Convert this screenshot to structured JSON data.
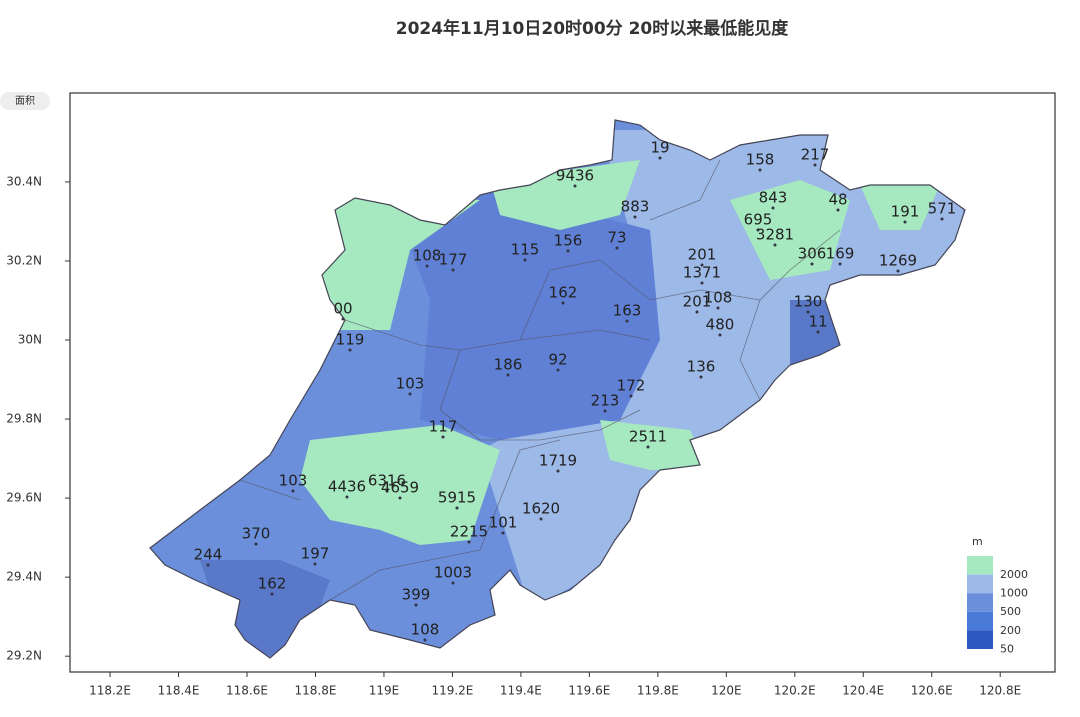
{
  "title": "2024年11月10日20时00分 20时以来最低能见度",
  "button": "面积",
  "map": {
    "xlim": [
      118.083,
      120.96
    ],
    "ylim": [
      29.16,
      30.625
    ],
    "xticks": [
      {
        "value": 118.2,
        "label": "118.2E"
      },
      {
        "value": 118.4,
        "label": "118.4E"
      },
      {
        "value": 118.6,
        "label": "118.6E"
      },
      {
        "value": 118.8,
        "label": "118.8E"
      },
      {
        "value": 119,
        "label": "119E"
      },
      {
        "value": 119.2,
        "label": "119.2E"
      },
      {
        "value": 119.4,
        "label": "119.4E"
      },
      {
        "value": 119.6,
        "label": "119.6E"
      },
      {
        "value": 119.8,
        "label": "119.8E"
      },
      {
        "value": 120,
        "label": "120E"
      },
      {
        "value": 120.2,
        "label": "120.2E"
      },
      {
        "value": 120.4,
        "label": "120.4E"
      },
      {
        "value": 120.6,
        "label": "120.6E"
      },
      {
        "value": 120.8,
        "label": "120.8E"
      }
    ],
    "yticks": [
      {
        "value": 29.2,
        "label": "29.2N"
      },
      {
        "value": 29.4,
        "label": "29.4N"
      },
      {
        "value": 29.6,
        "label": "29.6N"
      },
      {
        "value": 29.8,
        "label": "29.8N"
      },
      {
        "value": 30,
        "label": "30N"
      },
      {
        "value": 30.2,
        "label": "30.2N"
      },
      {
        "value": 30.4,
        "label": "30.4N"
      }
    ],
    "stations": [
      9436,
      19,
      158,
      217,
      48,
      843,
      883,
      695,
      3281,
      191,
      571,
      108,
      177,
      115,
      156,
      73,
      201,
      1371,
      306,
      169,
      1269,
      0,
      162,
      163,
      201,
      108,
      480,
      130,
      11,
      119,
      186,
      92,
      136,
      103,
      172,
      213,
      117,
      2511,
      1719,
      103,
      6316,
      4436,
      4659,
      5915,
      1620,
      370,
      2215,
      101,
      244,
      197,
      162,
      1003,
      399,
      108
    ],
    "station_labels": [
      "9436",
      "19",
      "158",
      "217",
      "48",
      "843",
      "883",
      "695",
      "3281",
      "191",
      "571",
      "108",
      "177",
      "115",
      "156",
      "73",
      "201",
      "1371",
      "306",
      "169",
      "1269",
      "00",
      "162",
      "163",
      "201",
      "108",
      "480",
      "130",
      "11",
      "119",
      "186",
      "92",
      "136",
      "103",
      "172",
      "213",
      "117",
      "2511",
      "1719",
      "103",
      "6316",
      "4436",
      "4659",
      "5915",
      "1620",
      "370",
      "2215",
      "101",
      "244",
      "197",
      "162",
      "1003",
      "399",
      "108"
    ]
  },
  "legend": {
    "unit": "m",
    "levels": [
      2000,
      1000,
      500,
      200,
      50
    ],
    "colors": [
      "#a6e8bf",
      "#9cb9e8",
      "#6b8fdb",
      "#4a7ad8",
      "#2f57c0"
    ]
  }
}
